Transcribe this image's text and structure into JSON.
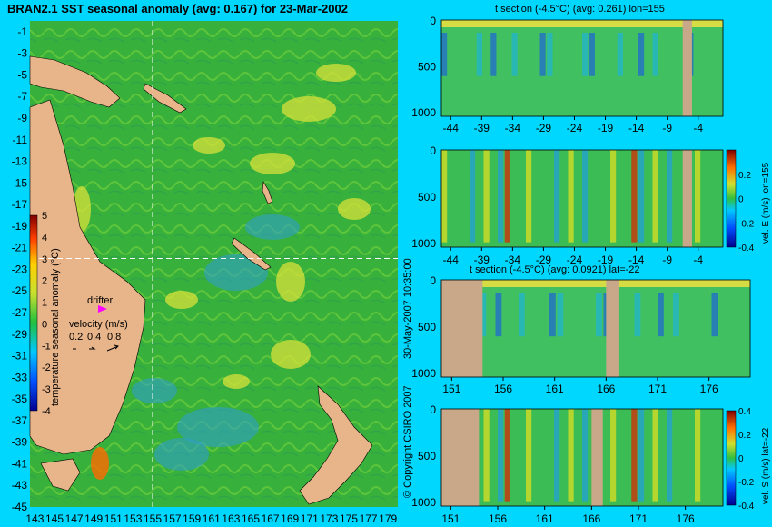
{
  "page": {
    "background_color": "#00d7ff",
    "vertical_caption": "30-May-2007 10:35:00",
    "copyright": "© Copyright CSIRO 2007"
  },
  "chart_data": [
    {
      "type": "heatmap",
      "title": "BRAN2.1 SST seasonal anomaly (avg: 0.167) for 23-Mar-2002",
      "x_ticks": [
        143,
        145,
        147,
        149,
        151,
        153,
        155,
        157,
        159,
        161,
        163,
        165,
        167,
        169,
        171,
        173,
        175,
        177,
        179
      ],
      "y_ticks": [
        -1,
        -3,
        -5,
        -7,
        -9,
        -11,
        -13,
        -15,
        -17,
        -19,
        -21,
        -23,
        -25,
        -27,
        -29,
        -31,
        -33,
        -35,
        -37,
        -39,
        -41,
        -43,
        -45
      ],
      "xlim": [
        142.5,
        180
      ],
      "ylim": [
        -45,
        0
      ],
      "section_line_lon": 155,
      "section_line_lat": -22,
      "colorbar": {
        "label": "temperature seasonal anomaly (°C)",
        "ticks": [
          5,
          4,
          3,
          2,
          1,
          0,
          -1,
          -2,
          -3,
          -4
        ],
        "range": [
          -4,
          5
        ]
      },
      "drifter_label": "drifter",
      "velocity_legend": {
        "title": "velocity (m/s)",
        "values": [
          "0.2",
          "0.4",
          "0.8"
        ]
      },
      "colors": {
        "ocean": "#3cb43c",
        "land": "#e8b48a",
        "warm": "#d8e23a",
        "cool": "#2fa0c8",
        "drifter": "#ff00ff"
      }
    },
    {
      "type": "heatmap",
      "title": "t section (-4.5°C) (avg: 0.261) lon=155",
      "x_ticks": [
        -44,
        -39,
        -34,
        -29,
        -24,
        -19,
        -14,
        -9,
        -4
      ],
      "xlim": [
        -45.5,
        0
      ],
      "y_ticks": [
        0,
        500,
        1000
      ],
      "ylim": [
        1050,
        0
      ],
      "land_x": [
        -6.5,
        -5
      ]
    },
    {
      "type": "heatmap",
      "title": "",
      "x_ticks": [
        -44,
        -39,
        -34,
        -29,
        -24,
        -19,
        -14,
        -9,
        -4
      ],
      "xlim": [
        -45.5,
        0
      ],
      "y_ticks": [
        0,
        500,
        1000
      ],
      "ylim": [
        1050,
        0
      ],
      "land_x": [
        -6.5,
        -5
      ],
      "colorbar": {
        "label": "vel. E (m/s) lon=155",
        "ticks": [
          "0.2",
          "0",
          "-0.2",
          "-0.4"
        ],
        "range": [
          -0.4,
          0.4
        ]
      }
    },
    {
      "type": "heatmap",
      "title": "t section (-4.5°C) (avg: 0.0921) lat=-22",
      "x_ticks": [
        151,
        156,
        161,
        166,
        171,
        176
      ],
      "xlim": [
        150,
        180
      ],
      "y_ticks": [
        0,
        500,
        1000
      ],
      "ylim": [
        1050,
        0
      ],
      "land_x": [
        [
          150,
          154
        ],
        [
          166,
          167.2
        ]
      ]
    },
    {
      "type": "heatmap",
      "title": "",
      "x_ticks": [
        151,
        156,
        161,
        166,
        171,
        176
      ],
      "xlim": [
        150,
        180
      ],
      "y_ticks": [
        0,
        500,
        1000
      ],
      "ylim": [
        1050,
        0
      ],
      "land_x": [
        [
          150,
          154
        ],
        [
          166,
          167.2
        ]
      ],
      "colorbar": {
        "label": "vel. S (m/s) lat=-22",
        "ticks": [
          "0.4",
          "0.2",
          "0",
          "-0.2",
          "-0.4"
        ],
        "range": [
          -0.4,
          0.4
        ]
      }
    }
  ]
}
